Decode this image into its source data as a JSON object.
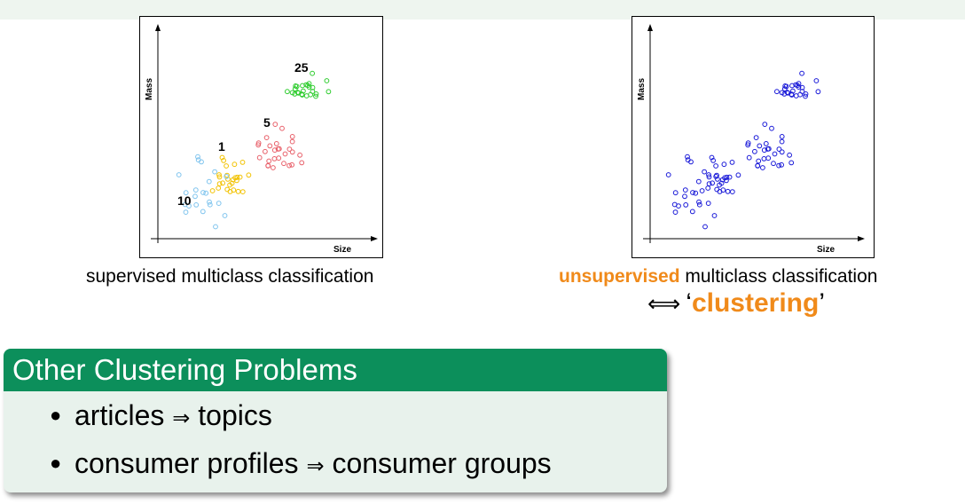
{
  "diagram": {
    "left_plot": {
      "ylabel": "Mass",
      "xlabel": "Size",
      "labels": [
        "25",
        "5",
        "1",
        "10"
      ],
      "colors": {
        "25": "#2ecc2e",
        "5": "#e8606a",
        "1": "#f2c200",
        "10": "#7fc4ee"
      }
    },
    "right_plot": {
      "ylabel": "Mass",
      "xlabel": "Size",
      "color": "#1a1ad8"
    },
    "caption_left": "supervised multiclass classification",
    "caption_right_highlight": "unsupervised",
    "caption_right_rest": " multiclass classification",
    "equiv_symbol": "⟺",
    "equiv_open_quote": "‘",
    "equiv_word": "clustering",
    "equiv_close_quote": "’",
    "accent_color": "#f08a1a"
  },
  "block": {
    "title": "Other Clustering Problems",
    "items": [
      {
        "from": "articles",
        "arrow": "⇒",
        "to": "topics"
      },
      {
        "from": "consumer profiles",
        "arrow": "⇒",
        "to": "consumer groups"
      }
    ],
    "header_color": "#0c8f5b",
    "body_color": "#e8f2ec"
  }
}
